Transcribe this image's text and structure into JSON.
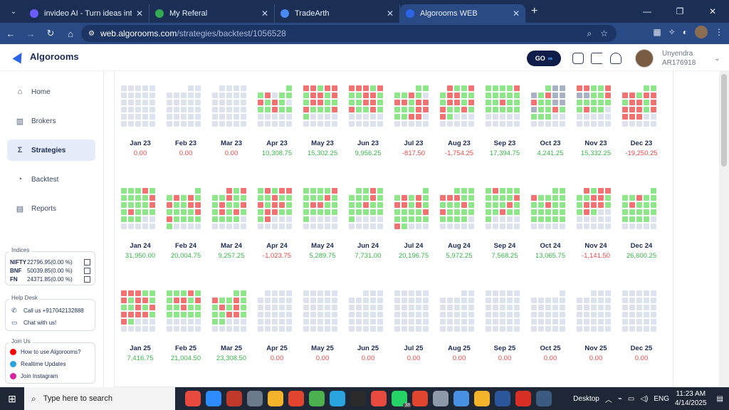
{
  "browser": {
    "tabs": [
      {
        "title": "invideo AI - Turn ideas into vide",
        "active": false,
        "favicon_color": "#6a5cff"
      },
      {
        "title": "My Referal",
        "active": false,
        "favicon_color": "#34a853"
      },
      {
        "title": "TradeArth",
        "active": false,
        "favicon_color": "#4a8af4"
      },
      {
        "title": "Algorooms WEB",
        "active": true,
        "favicon_color": "#2c64e6"
      }
    ],
    "url_host": "web.algorooms.com",
    "url_path": "/strategies/backtest/1056528"
  },
  "app": {
    "logo": "Algorooms",
    "go_label": "GO",
    "user": {
      "name": "Unyendra",
      "id": "AR176918"
    }
  },
  "sidebar": {
    "items": [
      {
        "label": "Home",
        "icon": "home-icon",
        "glyph": "⌂",
        "active": false
      },
      {
        "label": "Brokers",
        "icon": "brokers-icon",
        "glyph": "▥",
        "active": false
      },
      {
        "label": "Strategies",
        "icon": "sigma-icon",
        "glyph": "Σ",
        "active": true
      },
      {
        "label": "Backtest",
        "icon": "gauge-icon",
        "glyph": "◔",
        "active": false
      },
      {
        "label": "Reports",
        "icon": "report-icon",
        "glyph": "▤",
        "active": false
      }
    ],
    "indices": {
      "title": "Indices",
      "rows": [
        {
          "name": "NIFTY",
          "value": "22796.95(0.00 %)"
        },
        {
          "name": "BNF",
          "value": "50039.85(0.00 %)"
        },
        {
          "name": "FN",
          "value": "24371.85(0.00 %)"
        }
      ]
    },
    "helpdesk": {
      "title": "Help Desk",
      "call": "Call us +917042132888",
      "chat": "Chat with us!"
    },
    "joinus": {
      "title": "Join Us",
      "items": [
        {
          "label": "How to use Algorooms?",
          "color": "#ff0000"
        },
        {
          "label": "Realtime Updates",
          "color": "#2aa3df"
        },
        {
          "label": "Join Instagram",
          "color": "#d6249f"
        }
      ]
    }
  },
  "colors": {
    "profit": "#8ee58a",
    "loss": "#f07373",
    "neutral": "#dde2ec",
    "holiday": "#a9b2c3",
    "pos_text": "#38b54a",
    "neg_text": "#e54848",
    "zero_text": "#e54848"
  },
  "calendar": [
    {
      "month": "Jan 23",
      "pnl": "0.00",
      "sign": "zero",
      "pattern": ""
    },
    {
      "month": "Feb 23",
      "pnl": "0.00",
      "sign": "zero",
      "pattern": ""
    },
    {
      "month": "Mar 23",
      "pnl": "0.00",
      "sign": "zero",
      "pattern": ""
    },
    {
      "month": "Apr 23",
      "pnl": "10,308.75",
      "sign": "pos",
      "pattern": "PPLNPPLPLPNPPLPP"
    },
    {
      "month": "May 23",
      "pnl": "15,302.25",
      "sign": "pos",
      "pattern": "LLPLLPLLPLPLLPPLPPPLP"
    },
    {
      "month": "Jun 23",
      "pnl": "9,956.25",
      "sign": "pos",
      "pattern": "LLLPLPPLLPPPLLPLPPLP"
    },
    {
      "month": "Jul 23",
      "pnl": "-817.50",
      "sign": "neg",
      "pattern": "PPPPLPNLLPLLPPPLLPPLL"
    },
    {
      "month": "Aug 23",
      "pnl": "-1,754.25",
      "sign": "neg",
      "pattern": "LPPLPLLPPPLLPLLPPLPLP"
    },
    {
      "month": "Sep 23",
      "pnl": "17,394.75",
      "sign": "pos",
      "pattern": "PPPPLPPPPPPPLPPPPPPP"
    },
    {
      "month": "Oct 23",
      "pnl": "4,241.25",
      "sign": "pos",
      "pattern": "PHHHPLHHLPPHHHPPLPPPP"
    },
    {
      "month": "Nov 23",
      "pnl": "15,332.25",
      "sign": "pos",
      "pattern": "LLPPLHHPPLPPPPPPLPP"
    },
    {
      "month": "Dec 23",
      "pnl": "-19,250.25",
      "sign": "neg",
      "pattern": "PPLLPLLPLLPLLLLPLLLL"
    },
    {
      "month": "Jan 24",
      "pnl": "31,950.00",
      "sign": "pos",
      "pattern": "PPPLPPPPPLPPPPLPLPPPPPP"
    },
    {
      "month": "Feb 24",
      "pnl": "20,004.75",
      "sign": "pos",
      "pattern": "PPLPLPLPPLLPPPPLLPPPPP"
    },
    {
      "month": "Mar 24",
      "pnl": "9,257.25",
      "sign": "pos",
      "pattern": "LPLPPLPPPLPPLPLPLPPPPP"
    },
    {
      "month": "Apr 24",
      "pnl": "-1,023.75",
      "sign": "neg",
      "pattern": "PLPLLPPLPPLPLLPPLLPPPL"
    },
    {
      "month": "May 24",
      "pnl": "5,289.75",
      "sign": "pos",
      "pattern": "PPPPLPPPLPPLLPPPPPPPP"
    },
    {
      "month": "Jun 24",
      "pnl": "7,731.00",
      "sign": "pos",
      "pattern": "PPLPPPPLPPPLPPPPPPPP"
    },
    {
      "month": "Jul 24",
      "pnl": "20,196.75",
      "sign": "pos",
      "pattern": "PPLPLPLLPLPPPPPLPPPPPLP"
    },
    {
      "month": "Aug 24",
      "pnl": "5,972.25",
      "sign": "pos",
      "pattern": "PPPLLLPPPPPLPLPPPPPPPP"
    },
    {
      "month": "Sep 24",
      "pnl": "7,568.25",
      "sign": "pos",
      "pattern": "PLPPPPPPPLPPPLPPPLPPP"
    },
    {
      "month": "Oct 24",
      "pnl": "13,065.75",
      "sign": "pos",
      "pattern": "PPLPPPPPPLPPPPPPPPPPPP"
    },
    {
      "month": "Nov 24",
      "pnl": "-1,141.50",
      "sign": "neg",
      "pattern": "LPLLPPLLPPLLLPPLP"
    },
    {
      "month": "Dec 24",
      "pnl": "26,600.25",
      "sign": "pos",
      "pattern": "PPPLPPPLPPPPPPPPPPPP"
    },
    {
      "month": "Jan 25",
      "pnl": "7,416.75",
      "sign": "pos",
      "pattern": "LLLPPLPLLPPPLPLLLLLPLP"
    },
    {
      "month": "Feb 25",
      "pnl": "21,004.50",
      "sign": "pos",
      "pattern": "PPPLPPLLPLPPLPPPPPPP"
    },
    {
      "month": "Mar 25",
      "pnl": "23,308.50",
      "sign": "pos",
      "pattern": "PPLPPLPPLPLPPPLLPPP"
    },
    {
      "month": "Apr 25",
      "pnl": "0.00",
      "sign": "zero",
      "pattern": ""
    },
    {
      "month": "May 25",
      "pnl": "0.00",
      "sign": "zero",
      "pattern": ""
    },
    {
      "month": "Jun 25",
      "pnl": "0.00",
      "sign": "zero",
      "pattern": ""
    },
    {
      "month": "Jul 25",
      "pnl": "0.00",
      "sign": "zero",
      "pattern": ""
    },
    {
      "month": "Aug 25",
      "pnl": "0.00",
      "sign": "zero",
      "pattern": ""
    },
    {
      "month": "Sep 25",
      "pnl": "0.00",
      "sign": "zero",
      "pattern": ""
    },
    {
      "month": "Oct 25",
      "pnl": "0.00",
      "sign": "zero",
      "pattern": ""
    },
    {
      "month": "Nov 25",
      "pnl": "0.00",
      "sign": "zero",
      "pattern": ""
    },
    {
      "month": "Dec 25",
      "pnl": "0.00",
      "sign": "zero",
      "pattern": ""
    }
  ],
  "taskbar": {
    "search_placeholder": "Type here to search",
    "desktop_label": "Desktop",
    "lang": "ENG",
    "time": "11:23 AM",
    "date": "4/14/2025",
    "badge": "38"
  }
}
